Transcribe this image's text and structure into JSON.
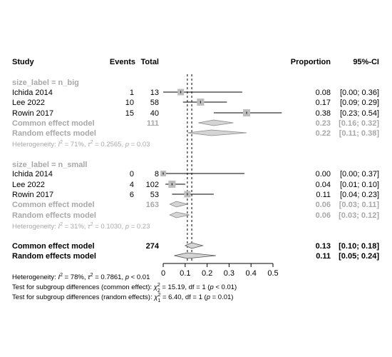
{
  "headers": {
    "study": "Study",
    "events": "Events",
    "total": "Total",
    "proportion": "Proportion",
    "ci": "95%-CI"
  },
  "chart_data": {
    "type": "forest",
    "xaxis": {
      "ticks": [
        0,
        0.1,
        0.2,
        0.3,
        0.4,
        0.5
      ],
      "tick_labels": [
        "0",
        "0.1",
        "0.2",
        "0.3",
        "0.4",
        "0.5"
      ],
      "range": [
        0,
        0.5
      ]
    },
    "reference_lines": {
      "common": 0.13,
      "random": 0.11
    },
    "groups": [
      {
        "label": "size_label = n_big",
        "studies": [
          {
            "name": "Ichida 2014",
            "events": "1",
            "total": "13",
            "prop": 0.08,
            "lo": 0.0,
            "hi": 0.36,
            "weight": 9,
            "est": "0.08",
            "ci": "[0.00; 0.36]"
          },
          {
            "name": "Lee 2022",
            "events": "10",
            "total": "58",
            "prop": 0.17,
            "lo": 0.09,
            "hi": 0.29,
            "weight": 10,
            "est": "0.17",
            "ci": "[0.09; 0.29]"
          },
          {
            "name": "Rowin 2017",
            "events": "15",
            "total": "40",
            "prop": 0.38,
            "lo": 0.23,
            "hi": 0.54,
            "weight": 10,
            "est": "0.38",
            "ci": "[0.23; 0.54]"
          }
        ],
        "common": {
          "label": "Common effect model",
          "total": "111",
          "est_val": 0.23,
          "lo": 0.16,
          "hi": 0.32,
          "est": "0.23",
          "ci": "[0.16; 0.32]"
        },
        "random": {
          "label": "Random effects model",
          "est_val": 0.22,
          "lo": 0.11,
          "hi": 0.38,
          "est": "0.22",
          "ci": "[0.11; 0.38]"
        },
        "heterogeneity": {
          "prefix": "Heterogeneity: ",
          "i2": "I",
          "i2_val": " = 71%, ",
          "tau": "τ",
          "tau_val": " = 0.2565, ",
          "p": "p",
          "p_val": " = 0.03"
        }
      },
      {
        "label": "size_label = n_small",
        "studies": [
          {
            "name": "Ichida 2014",
            "events": "0",
            "total": "8",
            "prop": 0.0,
            "lo": 0.0,
            "hi": 0.37,
            "weight": 8,
            "est": "0.00",
            "ci": "[0.00; 0.37]"
          },
          {
            "name": "Lee 2022",
            "events": "4",
            "total": "102",
            "prop": 0.04,
            "lo": 0.01,
            "hi": 0.1,
            "weight": 10,
            "est": "0.04",
            "ci": "[0.01; 0.10]"
          },
          {
            "name": "Rowin 2017",
            "events": "6",
            "total": "53",
            "prop": 0.11,
            "lo": 0.04,
            "hi": 0.23,
            "weight": 9,
            "est": "0.11",
            "ci": "[0.04; 0.23]"
          }
        ],
        "common": {
          "label": "Common effect model",
          "total": "163",
          "est_val": 0.06,
          "lo": 0.03,
          "hi": 0.11,
          "est": "0.06",
          "ci": "[0.03; 0.11]"
        },
        "random": {
          "label": "Random effects model",
          "est_val": 0.06,
          "lo": 0.03,
          "hi": 0.12,
          "est": "0.06",
          "ci": "[0.03; 0.12]"
        },
        "heterogeneity": {
          "prefix": "Heterogeneity: ",
          "i2": "I",
          "i2_val": " = 31%, ",
          "tau": "τ",
          "tau_val": " = 0.1030, ",
          "p": "p",
          "p_val": " = 0.23"
        }
      }
    ],
    "overall": {
      "common": {
        "label": "Common effect model",
        "total": "274",
        "est_val": 0.13,
        "lo": 0.1,
        "hi": 0.18,
        "est": "0.13",
        "ci": "[0.10; 0.18]"
      },
      "random": {
        "label": "Random effects model",
        "est_val": 0.11,
        "lo": 0.05,
        "hi": 0.24,
        "est": "0.11",
        "ci": "[0.05; 0.24]"
      }
    },
    "footer": {
      "heterogeneity": {
        "prefix": "Heterogeneity: ",
        "i2": "I",
        "i2_val": " = 78%, ",
        "tau": "τ",
        "tau_val": " = 0.7861, ",
        "p": "p",
        "p_val": " < 0.01"
      },
      "test_common": {
        "prefix": "Test for subgroup differences (common effect): ",
        "chi": "χ",
        "chi_sub": "2",
        "chi_val": " = 15.19, df = 1 (",
        "p": "p",
        "p_val": " < 0.01)"
      },
      "test_random": {
        "prefix": "Test for subgroup differences (random effects): ",
        "chi": "χ",
        "chi_sub": "1",
        "chi_val": " = 6.40, df = 1 (",
        "p": "p",
        "p_val": " = 0.01)"
      }
    }
  }
}
